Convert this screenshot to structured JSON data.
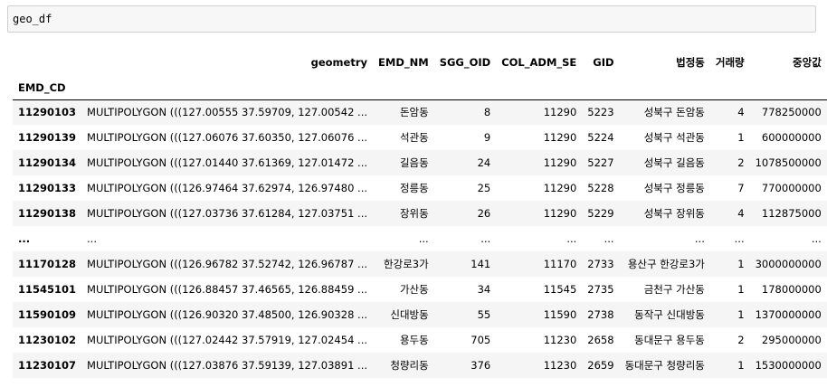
{
  "code_cell": {
    "input": "geo_df"
  },
  "dataframe": {
    "columns": [
      "geometry",
      "EMD_NM",
      "SGG_OID",
      "COL_ADM_SE",
      "GID",
      "법정동",
      "거래량",
      "중앙값"
    ],
    "index_name": "EMD_CD",
    "rows": [
      {
        "index": "11290103",
        "cells": [
          "MULTIPOLYGON (((127.00555 37.59709, 127.00542 ...",
          "돈암동",
          "8",
          "11290",
          "5223",
          "성북구 돈암동",
          "4",
          "778250000"
        ]
      },
      {
        "index": "11290139",
        "cells": [
          "MULTIPOLYGON (((127.06076 37.60350, 127.06076 ...",
          "석관동",
          "9",
          "11290",
          "5224",
          "성북구 석관동",
          "1",
          "600000000"
        ]
      },
      {
        "index": "11290134",
        "cells": [
          "MULTIPOLYGON (((127.01440 37.61369, 127.01472 ...",
          "길음동",
          "24",
          "11290",
          "5227",
          "성북구 길음동",
          "2",
          "1078500000"
        ]
      },
      {
        "index": "11290133",
        "cells": [
          "MULTIPOLYGON (((126.97464 37.62974, 126.97480 ...",
          "정릉동",
          "25",
          "11290",
          "5228",
          "성북구 정릉동",
          "7",
          "770000000"
        ]
      },
      {
        "index": "11290138",
        "cells": [
          "MULTIPOLYGON (((127.03736 37.61284, 127.03751 ...",
          "장위동",
          "26",
          "11290",
          "5229",
          "성북구 장위동",
          "4",
          "112875000"
        ]
      },
      {
        "index": "...",
        "cells": [
          "...",
          "...",
          "...",
          "...",
          "...",
          "...",
          "...",
          "..."
        ]
      },
      {
        "index": "11170128",
        "cells": [
          "MULTIPOLYGON (((126.96782 37.52742, 126.96787 ...",
          "한강로3가",
          "141",
          "11170",
          "2733",
          "용산구 한강로3가",
          "1",
          "3000000000"
        ]
      },
      {
        "index": "11545101",
        "cells": [
          "MULTIPOLYGON (((126.88457 37.46565, 126.88459 ...",
          "가산동",
          "34",
          "11545",
          "2735",
          "금천구 가산동",
          "1",
          "178000000"
        ]
      },
      {
        "index": "11590109",
        "cells": [
          "MULTIPOLYGON (((126.90320 37.48500, 126.90328 ...",
          "신대방동",
          "55",
          "11590",
          "2738",
          "동작구 신대방동",
          "1",
          "1370000000"
        ]
      },
      {
        "index": "11230102",
        "cells": [
          "MULTIPOLYGON (((127.02442 37.57919, 127.02454 ...",
          "용두동",
          "705",
          "11230",
          "2658",
          "동대문구 용두동",
          "2",
          "295000000"
        ]
      },
      {
        "index": "11230107",
        "cells": [
          "MULTIPOLYGON (((127.03876 37.59139, 127.03891 ...",
          "청량리동",
          "376",
          "11230",
          "2659",
          "동대문구 청량리동",
          "1",
          "1530000000"
        ]
      }
    ]
  }
}
